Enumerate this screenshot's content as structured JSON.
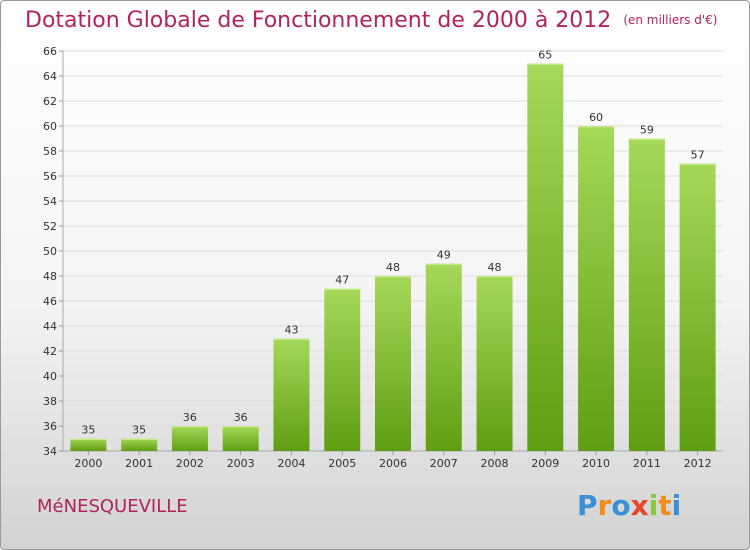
{
  "header": {
    "title": "Dotation Globale de Fonctionnement de 2000 à 2012",
    "subtitle": "(en milliers d'€)"
  },
  "footer": {
    "commune": "MéNESQUEVILLE",
    "logo_letters": [
      "P",
      "r",
      "o",
      "x",
      "i",
      "t",
      "i"
    ],
    "logo_colors": [
      "#3a8fd6",
      "#f28c1e",
      "#3a8fd6",
      "#e8462a",
      "#8dc63f",
      "#f28c1e",
      "#3a8fd6"
    ]
  },
  "colors": {
    "bar_light": "#a6d85a",
    "bar_dark": "#5f9e12",
    "title": "#b0245e",
    "grid": "#dddddd"
  },
  "chart_data": {
    "type": "bar",
    "categories": [
      "2000",
      "2001",
      "2002",
      "2003",
      "2004",
      "2005",
      "2006",
      "2007",
      "2008",
      "2009",
      "2010",
      "2011",
      "2012"
    ],
    "values": [
      35,
      35,
      36,
      36,
      43,
      47,
      48,
      49,
      48,
      65,
      60,
      59,
      57
    ],
    "ylim": [
      34,
      66
    ],
    "yticks": [
      34,
      36,
      38,
      40,
      42,
      44,
      46,
      48,
      50,
      52,
      54,
      56,
      58,
      60,
      62,
      64,
      66
    ],
    "grid": true,
    "legend": "none"
  }
}
